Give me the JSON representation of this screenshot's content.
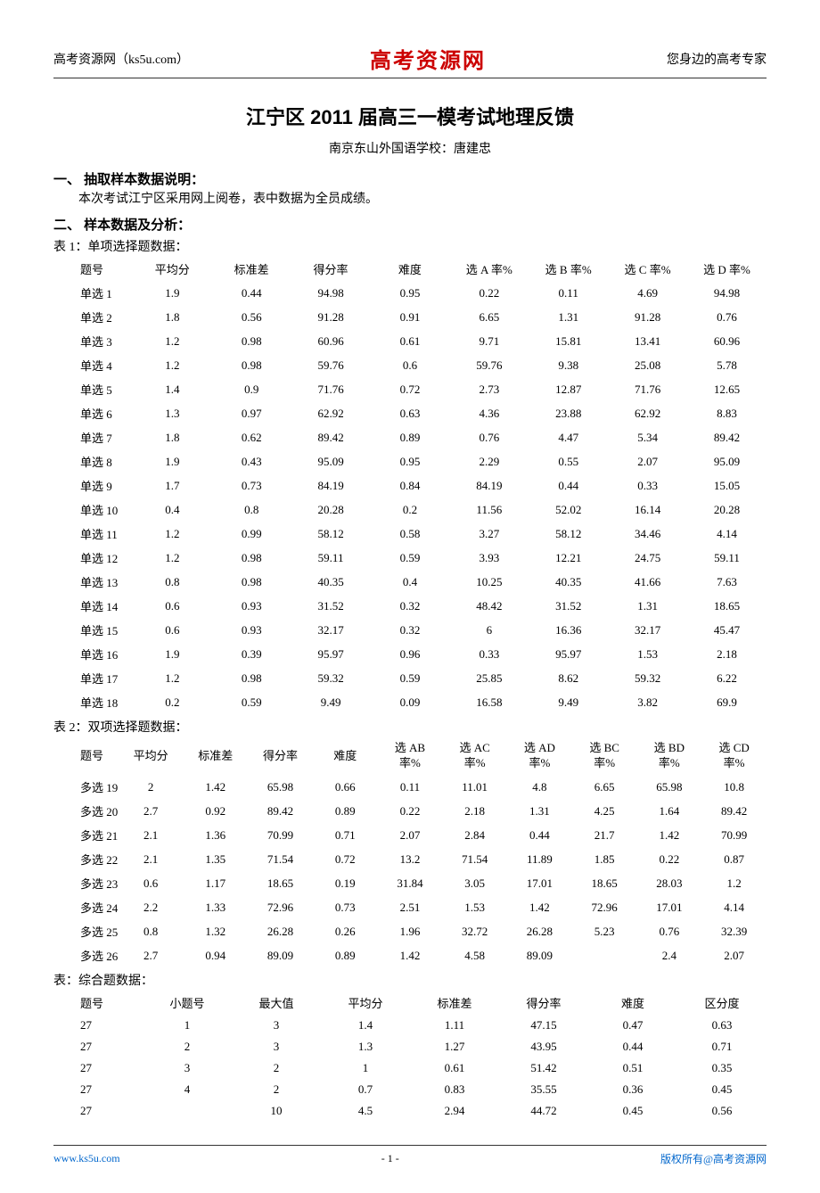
{
  "header": {
    "left": "高考资源网（ks5u.com）",
    "center": "高考资源网",
    "right": "您身边的高考专家"
  },
  "title": "江宁区 2011 届高三一模考试地理反馈",
  "subtitle": "南京东山外国语学校：唐建忠",
  "section1": {
    "heading": "一、 抽取样本数据说明：",
    "text": "本次考试江宁区采用网上阅卷，表中数据为全员成绩。"
  },
  "section2": {
    "heading": "二、 样本数据及分析："
  },
  "table1": {
    "caption": "表 1：单项选择题数据：",
    "headers": [
      "题号",
      "平均分",
      "标准差",
      "得分率",
      "难度",
      "选 A 率%",
      "选 B 率%",
      "选 C 率%",
      "选 D 率%"
    ],
    "rows": [
      [
        "单选 1",
        "1.9",
        "0.44",
        "94.98",
        "0.95",
        "0.22",
        "0.11",
        "4.69",
        "94.98"
      ],
      [
        "单选 2",
        "1.8",
        "0.56",
        "91.28",
        "0.91",
        "6.65",
        "1.31",
        "91.28",
        "0.76"
      ],
      [
        "单选 3",
        "1.2",
        "0.98",
        "60.96",
        "0.61",
        "9.71",
        "15.81",
        "13.41",
        "60.96"
      ],
      [
        "单选 4",
        "1.2",
        "0.98",
        "59.76",
        "0.6",
        "59.76",
        "9.38",
        "25.08",
        "5.78"
      ],
      [
        "单选 5",
        "1.4",
        "0.9",
        "71.76",
        "0.72",
        "2.73",
        "12.87",
        "71.76",
        "12.65"
      ],
      [
        "单选 6",
        "1.3",
        "0.97",
        "62.92",
        "0.63",
        "4.36",
        "23.88",
        "62.92",
        "8.83"
      ],
      [
        "单选 7",
        "1.8",
        "0.62",
        "89.42",
        "0.89",
        "0.76",
        "4.47",
        "5.34",
        "89.42"
      ],
      [
        "单选 8",
        "1.9",
        "0.43",
        "95.09",
        "0.95",
        "2.29",
        "0.55",
        "2.07",
        "95.09"
      ],
      [
        "单选 9",
        "1.7",
        "0.73",
        "84.19",
        "0.84",
        "84.19",
        "0.44",
        "0.33",
        "15.05"
      ],
      [
        "单选 10",
        "0.4",
        "0.8",
        "20.28",
        "0.2",
        "11.56",
        "52.02",
        "16.14",
        "20.28"
      ],
      [
        "单选 11",
        "1.2",
        "0.99",
        "58.12",
        "0.58",
        "3.27",
        "58.12",
        "34.46",
        "4.14"
      ],
      [
        "单选 12",
        "1.2",
        "0.98",
        "59.11",
        "0.59",
        "3.93",
        "12.21",
        "24.75",
        "59.11"
      ],
      [
        "单选 13",
        "0.8",
        "0.98",
        "40.35",
        "0.4",
        "10.25",
        "40.35",
        "41.66",
        "7.63"
      ],
      [
        "单选 14",
        "0.6",
        "0.93",
        "31.52",
        "0.32",
        "48.42",
        "31.52",
        "1.31",
        "18.65"
      ],
      [
        "单选 15",
        "0.6",
        "0.93",
        "32.17",
        "0.32",
        "6",
        "16.36",
        "32.17",
        "45.47"
      ],
      [
        "单选 16",
        "1.9",
        "0.39",
        "95.97",
        "0.96",
        "0.33",
        "95.97",
        "1.53",
        "2.18"
      ],
      [
        "单选 17",
        "1.2",
        "0.98",
        "59.32",
        "0.59",
        "25.85",
        "8.62",
        "59.32",
        "6.22"
      ],
      [
        "单选 18",
        "0.2",
        "0.59",
        "9.49",
        "0.09",
        "16.58",
        "9.49",
        "3.82",
        "69.9"
      ]
    ]
  },
  "table2": {
    "caption": "表 2：双项选择题数据：",
    "headers": [
      "题号",
      "平均分",
      "标准差",
      "得分率",
      "难度",
      "选 AB\n率%",
      "选 AC\n率%",
      "选 AD\n率%",
      "选 BC\n率%",
      "选 BD\n率%",
      "选 CD\n率%"
    ],
    "rows": [
      [
        "多选 19",
        "2",
        "1.42",
        "65.98",
        "0.66",
        "0.11",
        "11.01",
        "4.8",
        "6.65",
        "65.98",
        "10.8"
      ],
      [
        "多选 20",
        "2.7",
        "0.92",
        "89.42",
        "0.89",
        "0.22",
        "2.18",
        "1.31",
        "4.25",
        "1.64",
        "89.42"
      ],
      [
        "多选 21",
        "2.1",
        "1.36",
        "70.99",
        "0.71",
        "2.07",
        "2.84",
        "0.44",
        "21.7",
        "1.42",
        "70.99"
      ],
      [
        "多选 22",
        "2.1",
        "1.35",
        "71.54",
        "0.72",
        "13.2",
        "71.54",
        "11.89",
        "1.85",
        "0.22",
        "0.87"
      ],
      [
        "多选 23",
        "0.6",
        "1.17",
        "18.65",
        "0.19",
        "31.84",
        "3.05",
        "17.01",
        "18.65",
        "28.03",
        "1.2"
      ],
      [
        "多选 24",
        "2.2",
        "1.33",
        "72.96",
        "0.73",
        "2.51",
        "1.53",
        "1.42",
        "72.96",
        "17.01",
        "4.14"
      ],
      [
        "多选 25",
        "0.8",
        "1.32",
        "26.28",
        "0.26",
        "1.96",
        "32.72",
        "26.28",
        "5.23",
        "0.76",
        "32.39"
      ],
      [
        "多选 26",
        "2.7",
        "0.94",
        "89.09",
        "0.89",
        "1.42",
        "4.58",
        "89.09",
        "",
        "2.4",
        "2.07"
      ]
    ]
  },
  "table3": {
    "caption": "表：综合题数据：",
    "headers": [
      "题号",
      "小题号",
      "最大值",
      "平均分",
      "标准差",
      "得分率",
      "难度",
      "区分度"
    ],
    "rows": [
      [
        "27",
        "1",
        "3",
        "1.4",
        "1.11",
        "47.15",
        "0.47",
        "0.63"
      ],
      [
        "27",
        "2",
        "3",
        "1.3",
        "1.27",
        "43.95",
        "0.44",
        "0.71"
      ],
      [
        "27",
        "3",
        "2",
        "1",
        "0.61",
        "51.42",
        "0.51",
        "0.35"
      ],
      [
        "27",
        "4",
        "2",
        "0.7",
        "0.83",
        "35.55",
        "0.36",
        "0.45"
      ],
      [
        "27",
        "",
        "10",
        "4.5",
        "2.94",
        "44.72",
        "0.45",
        "0.56"
      ]
    ]
  },
  "footer": {
    "left": "www.ks5u.com",
    "center": "- 1 -",
    "right": "版权所有@高考资源网"
  }
}
